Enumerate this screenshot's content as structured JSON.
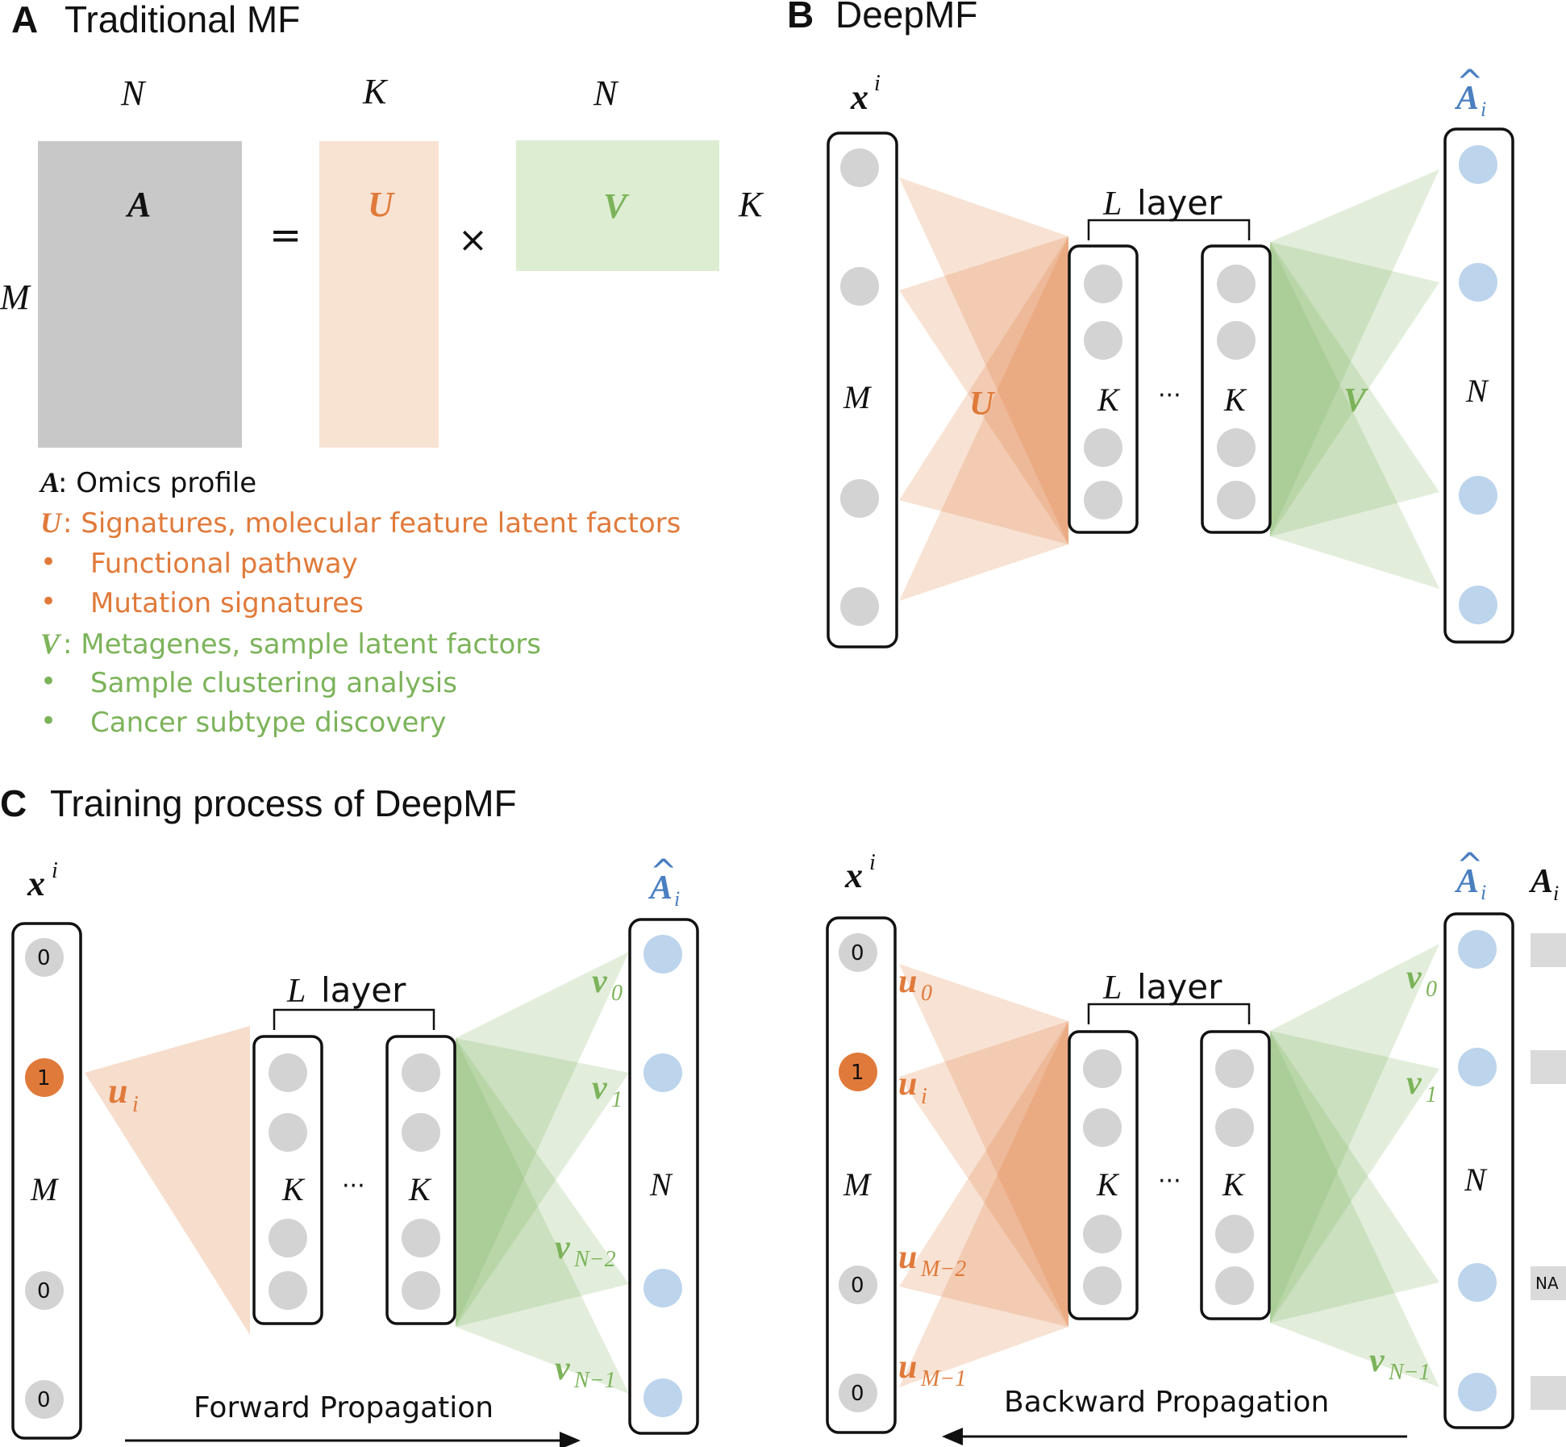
{
  "panels": {
    "a": {
      "letter": "A",
      "title": "Traditional MF"
    },
    "b": {
      "letter": "B",
      "title": "DeepMF"
    },
    "c": {
      "letter": "C",
      "title": "Training process of DeepMF"
    }
  },
  "panel_a": {
    "dims": {
      "N1": "N",
      "K1": "K",
      "N2": "N",
      "K_side": "K",
      "M_side": "M"
    },
    "matrix_labels": {
      "A": "A",
      "U": "U",
      "V": "V"
    },
    "ops": {
      "eq": "=",
      "times": "×"
    },
    "legend": {
      "a_sym": "A",
      "a_text": ": Omics profile",
      "u_sym": "U",
      "u_text": ": Signatures, molecular feature latent factors",
      "u_b1": "Functional pathway",
      "u_b2": "Mutation signatures",
      "v_sym": "V",
      "v_text": ": Metagenes, sample latent factors",
      "v_b1": "Sample clustering analysis",
      "v_b2": "Cancer subtype discovery",
      "bullet": "•"
    }
  },
  "panel_b": {
    "x_label": "x",
    "x_sup": "i",
    "ahat_label": "A",
    "ahat_sub": "i",
    "hat": "^",
    "M": "M",
    "U": "U",
    "V": "V",
    "N": "N",
    "L": "L",
    "layer": "layer",
    "K1": "K",
    "dots": "···",
    "K2": "K"
  },
  "panel_c_left": {
    "x_label": "x",
    "x_sup": "i",
    "ahat_label": "A",
    "ahat_sub": "i",
    "hat": "^",
    "vals": [
      "0",
      "1",
      "0",
      "0"
    ],
    "M": "M",
    "N": "N",
    "u_label": "u",
    "u_sub": "i",
    "L": "L",
    "layer": "layer",
    "K1": "K",
    "dots": "···",
    "K2": "K",
    "v0": "v",
    "v0_sub": "0",
    "v1": "v",
    "v1_sub": "1",
    "vn2": "v",
    "vn2_sub": "N−2",
    "vn1": "v",
    "vn1_sub": "N−1",
    "caption": "Forward Propagation"
  },
  "panel_c_right": {
    "x_label": "x",
    "x_sup": "i",
    "ahat_label": "A",
    "ahat_sub": "i",
    "hat": "^",
    "a_label": "A",
    "a_sub": "i",
    "vals": [
      "0",
      "1",
      "0",
      "0"
    ],
    "M": "M",
    "N": "N",
    "u0": "u",
    "u0_sub": "0",
    "ui": "u",
    "ui_sub": "i",
    "um2": "u",
    "um2_sub": "M−2",
    "um1": "u",
    "um1_sub": "M−1",
    "L": "L",
    "layer": "layer",
    "K1": "K",
    "dots": "···",
    "K2": "K",
    "v0": "v",
    "v0_sub": "0",
    "v1": "v",
    "v1_sub": "1",
    "vn1": "v",
    "vn1_sub": "N−1",
    "na": "NA",
    "caption": "Backward Propagation"
  },
  "colors": {
    "orange": "#e07a3a",
    "orange_fill": "#f7e0cf",
    "green": "#7cb35a",
    "green_fill": "#dcedd1",
    "gray_matrix": "#c8c8c8",
    "node_gray": "#d3d3d3",
    "node_blue": "#bcd4ec",
    "hat_blue": "#4a7fc0"
  }
}
